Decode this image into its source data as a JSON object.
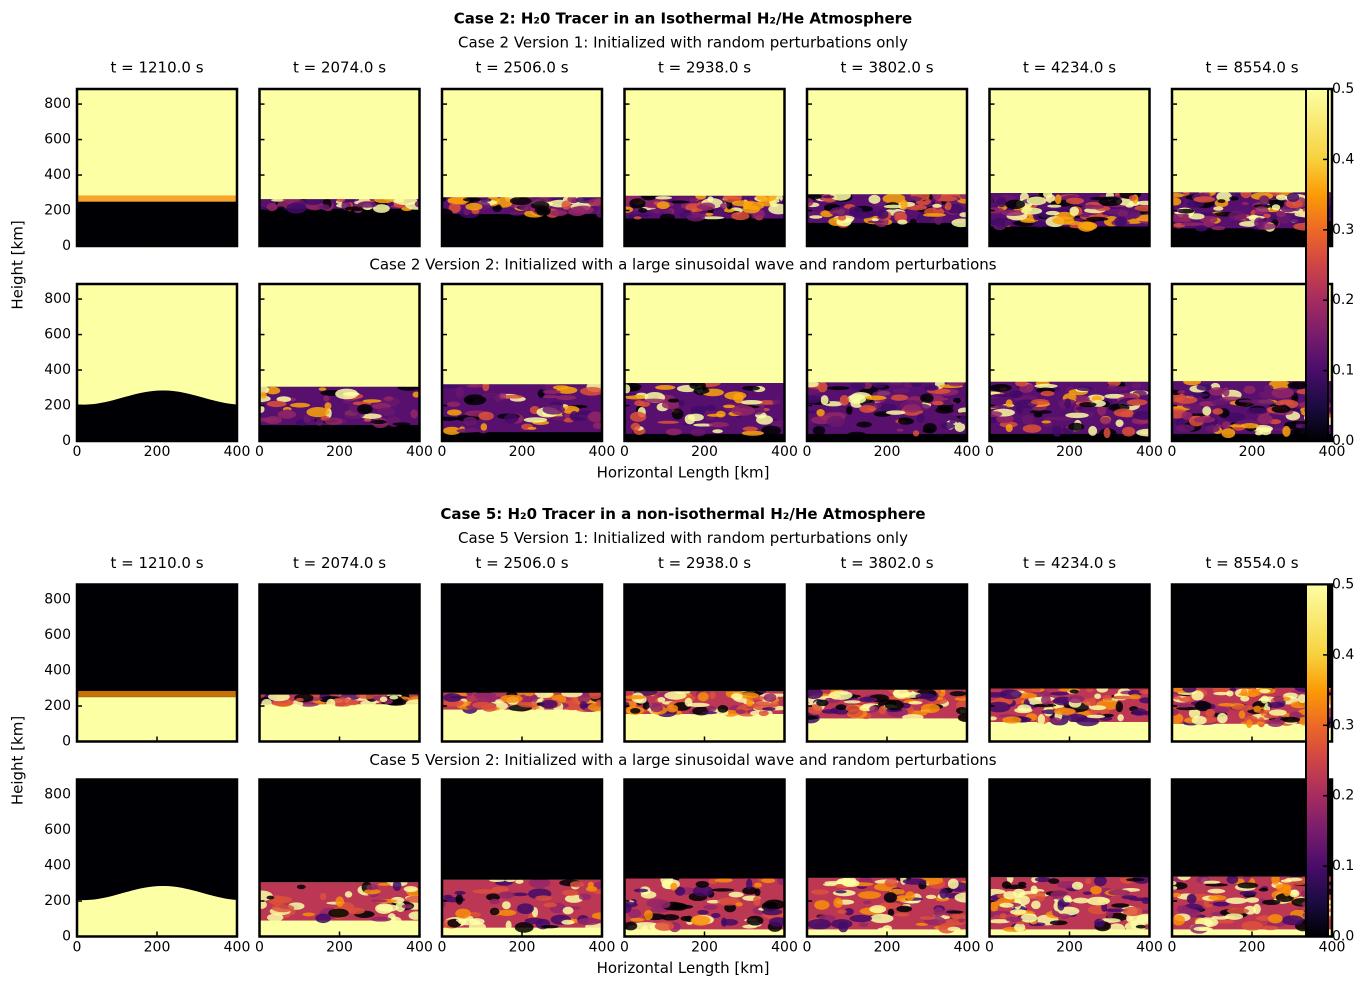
{
  "chart_data": [
    {
      "type": "heatmap-grid",
      "title": "Case 2: H₂0 Tracer in an Isothermal H₂/He Atmosphere",
      "row_titles": [
        "Case 2 Version 1: Initialized with random perturbations only",
        "Case 2 Version 2: Initialized with a large sinusoidal wave and random perturbations"
      ],
      "panel_titles": [
        "t = 1210.0 s",
        "t = 2074.0 s",
        "t = 2506.0 s",
        "t = 2938.0 s",
        "t = 3802.0 s",
        "t = 4234.0 s",
        "t = 8554.0 s"
      ],
      "xlabel": "Horizontal Length [km]",
      "ylabel": "Height [km]",
      "xlim": [
        0,
        400
      ],
      "xticks": [
        0,
        200,
        400
      ],
      "ylim": [
        0,
        885
      ],
      "yticks": [
        0,
        200,
        400,
        600,
        800
      ],
      "colorbar_lim": [
        0,
        0.5
      ],
      "colorbar_ticks": [
        {
          "value": 0,
          "label": "0.0"
        },
        0.1,
        0.2,
        0.3,
        0.4,
        0.5
      ],
      "tracer_on_top": true
    },
    {
      "type": "heatmap-grid",
      "title": "Case 5: H₂0 Tracer in a non-isothermal H₂/He Atmosphere",
      "row_titles": [
        "Case 5 Version 1: Initialized with random perturbations only",
        "Case 5 Version 2: Initialized with a large sinusoidal wave and random perturbations"
      ],
      "panel_titles": [
        "t = 1210.0 s",
        "t = 2074.0 s",
        "t = 2506.0 s",
        "t = 2938.0 s",
        "t = 3802.0 s",
        "t = 4234.0 s",
        "t = 8554.0 s"
      ],
      "xlabel": "Horizontal Length [km]",
      "ylabel": "Height [km]",
      "xlim": [
        0,
        400
      ],
      "xticks": [
        0,
        200,
        400
      ],
      "ylim": [
        0,
        885
      ],
      "yticks": [
        0,
        200,
        400,
        600,
        800
      ],
      "colorbar_lim": [
        0,
        0.5
      ],
      "colorbar_ticks": [
        {
          "value": 0,
          "label": "0.0"
        },
        0.1,
        0.2,
        0.3,
        0.4,
        0.5
      ],
      "tracer_on_top": false
    }
  ]
}
